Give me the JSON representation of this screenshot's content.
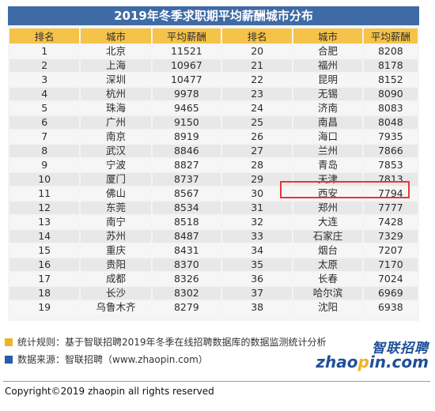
{
  "title": "2019年冬季求职期平均薪酬城市分布",
  "headers": [
    "排名",
    "城市",
    "平均薪酬",
    "排名",
    "城市",
    "平均薪酬"
  ],
  "rows": [
    [
      [
        "1",
        "北京",
        "11521"
      ],
      [
        "20",
        "合肥",
        "8208"
      ]
    ],
    [
      [
        "2",
        "上海",
        "10967"
      ],
      [
        "21",
        "福州",
        "8178"
      ]
    ],
    [
      [
        "3",
        "深圳",
        "10477"
      ],
      [
        "22",
        "昆明",
        "8152"
      ]
    ],
    [
      [
        "4",
        "杭州",
        "9978"
      ],
      [
        "23",
        "无锡",
        "8090"
      ]
    ],
    [
      [
        "5",
        "珠海",
        "9465"
      ],
      [
        "24",
        "济南",
        "8083"
      ]
    ],
    [
      [
        "6",
        "广州",
        "9150"
      ],
      [
        "25",
        "南昌",
        "8048"
      ]
    ],
    [
      [
        "7",
        "南京",
        "8919"
      ],
      [
        "26",
        "海口",
        "7935"
      ]
    ],
    [
      [
        "8",
        "武汉",
        "8846"
      ],
      [
        "27",
        "兰州",
        "7866"
      ]
    ],
    [
      [
        "9",
        "宁波",
        "8827"
      ],
      [
        "28",
        "青岛",
        "7853"
      ]
    ],
    [
      [
        "10",
        "厦门",
        "8737"
      ],
      [
        "29",
        "天津",
        "7813"
      ]
    ],
    [
      [
        "11",
        "佛山",
        "8567"
      ],
      [
        "30",
        "西安",
        "7794"
      ]
    ],
    [
      [
        "12",
        "东莞",
        "8534"
      ],
      [
        "31",
        "郑州",
        "7777"
      ]
    ],
    [
      [
        "13",
        "南宁",
        "8518"
      ],
      [
        "32",
        "大连",
        "7428"
      ]
    ],
    [
      [
        "14",
        "苏州",
        "8487"
      ],
      [
        "33",
        "石家庄",
        "7329"
      ]
    ],
    [
      [
        "15",
        "重庆",
        "8431"
      ],
      [
        "34",
        "烟台",
        "7207"
      ]
    ],
    [
      [
        "16",
        "贵阳",
        "8370"
      ],
      [
        "35",
        "太原",
        "7170"
      ]
    ],
    [
      [
        "17",
        "成都",
        "8326"
      ],
      [
        "36",
        "长春",
        "7024"
      ]
    ],
    [
      [
        "18",
        "长沙",
        "8302"
      ],
      [
        "37",
        "哈尔滨",
        "6969"
      ]
    ],
    [
      [
        "19",
        "乌鲁木齐",
        "8279"
      ],
      [
        "38",
        "沈阳",
        "6938"
      ]
    ]
  ],
  "highlighted_city": "天津",
  "notes": {
    "method": "统计规则：基于智联招聘2019年冬季在线招聘数据库的数据监测统计分析",
    "source": "数据来源：智联招聘（www.zhaopin.com）"
  },
  "logo": {
    "chinese": "智联招聘",
    "english_pre": "zhao",
    "english_dot": "p",
    "english_post": "in.com"
  },
  "copyright": "Copyright©2019 zhaopin all rights reserved",
  "colors": {
    "title_bg": "#3f6ba5",
    "header_bg": "#f5c34a",
    "highlight_border": "#e53935",
    "brand_blue": "#1f4f99",
    "brand_yellow": "#f0b323"
  }
}
